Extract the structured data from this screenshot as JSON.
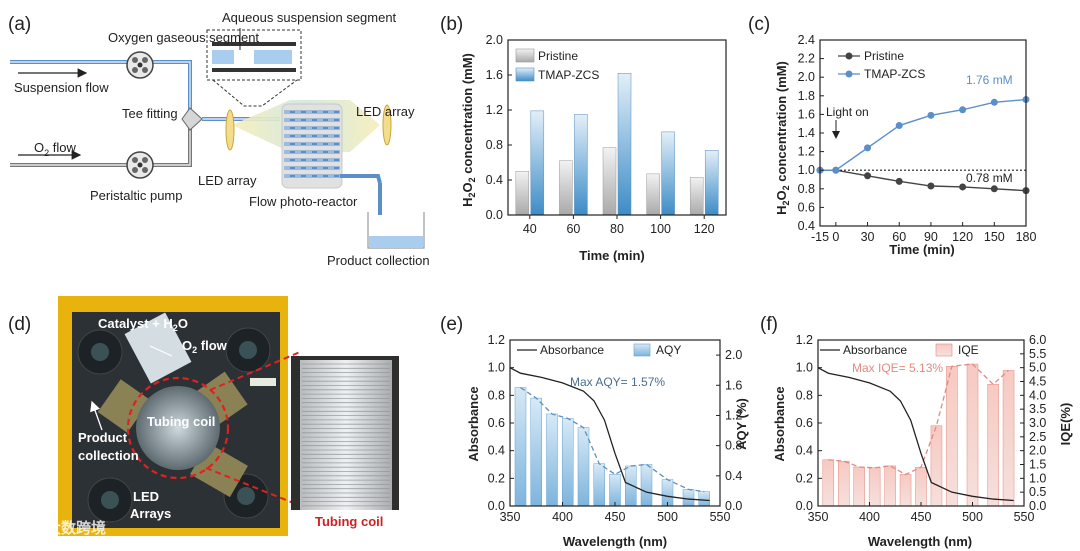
{
  "panels": {
    "a": {
      "label": "(a)",
      "aqueous_segment": "Aqueous suspension segment",
      "oxygen_segment": "Oxygen gaseous segment",
      "suspension_flow": "Suspension flow",
      "tee_fitting": "Tee fitting",
      "o2_flow_base": "O",
      "o2_flow_sub": "2",
      "o2_flow_rest": " flow",
      "peristaltic_pump": "Peristaltic pump",
      "led_array_left": "LED array",
      "led_array_right": "LED array",
      "flow_reactor": "Flow photo-reactor",
      "product_collection": "Product collection"
    },
    "d": {
      "label": "(d)",
      "catalyst": "Catalyst + H",
      "catalyst_sub": "2",
      "catalyst_end": "O",
      "o2_flow": "O",
      "o2_sub": "2",
      "o2_rest": " flow",
      "product": "Product",
      "collection": "collection",
      "tubing_coil": "Tubing coil",
      "led": "LED",
      "arrays": "Arrays",
      "tubing_coil_caption": "Tubing coil",
      "watermark": "大数跨境"
    }
  },
  "colors": {
    "pristine": "#b8b8b8",
    "tmap": "#5aa0d2",
    "tmap_line": "#5b8fc9",
    "aqy_bar": "#7fb7de",
    "iqe_bar": "#ef9f96",
    "red": "#cc2222"
  },
  "chart_data": [
    {
      "id": "b",
      "panel_label": "(b)",
      "type": "bar",
      "categories": [
        "40",
        "60",
        "80",
        "100",
        "120"
      ],
      "series": [
        {
          "name": "Pristine",
          "values": [
            0.5,
            0.62,
            0.77,
            0.47,
            0.43
          ]
        },
        {
          "name": "TMAP-ZCS",
          "values": [
            1.19,
            1.15,
            1.62,
            0.95,
            0.74
          ]
        }
      ],
      "xlabel": "Time (min)",
      "ylabel_parts": [
        "H",
        "2",
        "O",
        "2",
        " concentration (mM)"
      ],
      "ylim": [
        0,
        2.0
      ],
      "yticks": [
        "0.0",
        "0.4",
        "0.8",
        "1.2",
        "1.6",
        "2.0"
      ]
    },
    {
      "id": "c",
      "panel_label": "(c)",
      "type": "line",
      "x": [
        -15,
        0,
        30,
        60,
        90,
        120,
        150,
        180
      ],
      "series": [
        {
          "name": "Pristine",
          "values": [
            1.0,
            1.0,
            0.94,
            0.88,
            0.83,
            0.82,
            0.8,
            0.78
          ]
        },
        {
          "name": "TMAP-ZCS",
          "values": [
            1.0,
            1.0,
            1.24,
            1.48,
            1.59,
            1.65,
            1.73,
            1.76
          ]
        }
      ],
      "reference_line": 1.0,
      "annotations": {
        "light_on": "Light on",
        "tmap_end": "1.76 mM",
        "pristine_end": "0.78 mM"
      },
      "xlabel": "Time (min)",
      "ylabel_parts": [
        "H",
        "2",
        "O",
        "2",
        " concentration (mM)"
      ],
      "xticks": [
        "-15",
        "0",
        "30",
        "60",
        "90",
        "120",
        "150",
        "180"
      ],
      "yticks": [
        "0.4",
        "0.6",
        "0.8",
        "1.0",
        "1.2",
        "1.4",
        "1.6",
        "1.8",
        "2.0",
        "2.2",
        "2.4"
      ],
      "xlim": [
        -15,
        180
      ],
      "ylim": [
        0.4,
        2.4
      ]
    },
    {
      "id": "e",
      "panel_label": "(e)",
      "type": "bar",
      "absorbance": {
        "name": "Absorbance",
        "x": [
          350,
          360,
          380,
          400,
          420,
          430,
          440,
          450,
          460,
          480,
          500,
          520,
          540
        ],
        "y": [
          1.0,
          0.96,
          0.93,
          0.89,
          0.83,
          0.76,
          0.62,
          0.38,
          0.17,
          0.1,
          0.07,
          0.05,
          0.04
        ]
      },
      "bars": {
        "name": "AQY",
        "x": [
          360,
          375,
          390,
          405,
          420,
          435,
          450,
          465,
          480,
          500,
          520,
          535
        ],
        "values": [
          1.57,
          1.43,
          1.22,
          1.16,
          1.04,
          0.56,
          0.42,
          0.53,
          0.55,
          0.35,
          0.22,
          0.19
        ]
      },
      "max_label": "Max AQY= 1.57%",
      "xlabel": "Wavelength (nm)",
      "ylabel_left": "Absorbance",
      "ylabel_right": "AQY (%)",
      "xticks": [
        "350",
        "400",
        "450",
        "500",
        "550"
      ],
      "yticks_left": [
        "0.0",
        "0.2",
        "0.4",
        "0.6",
        "0.8",
        "1.0",
        "1.2"
      ],
      "yticks_right": [
        "0.0",
        "0.4",
        "0.8",
        "1.2",
        "1.6",
        "2.0"
      ],
      "xlim": [
        350,
        550
      ],
      "ylim_left": [
        0,
        1.2
      ],
      "ylim_right": [
        0,
        2.2
      ]
    },
    {
      "id": "f",
      "panel_label": "(f)",
      "type": "bar",
      "absorbance": {
        "name": "Absorbance",
        "x": [
          350,
          360,
          380,
          400,
          420,
          430,
          440,
          450,
          460,
          480,
          500,
          520,
          540
        ],
        "y": [
          1.0,
          0.96,
          0.93,
          0.89,
          0.83,
          0.76,
          0.62,
          0.38,
          0.17,
          0.1,
          0.07,
          0.05,
          0.04
        ]
      },
      "bars": {
        "name": "IQE",
        "x": [
          360,
          375,
          390,
          405,
          420,
          435,
          450,
          465,
          480,
          500,
          520,
          535
        ],
        "values": [
          1.67,
          1.62,
          1.41,
          1.38,
          1.45,
          1.14,
          1.4,
          2.9,
          5.05,
          5.13,
          4.4,
          4.9
        ]
      },
      "max_label": "Max IQE= 5.13%",
      "xlabel": "Wavelength (nm)",
      "ylabel_left": "Absorbance",
      "ylabel_right": "IQE(%)",
      "xticks": [
        "350",
        "400",
        "450",
        "500",
        "550"
      ],
      "yticks_left": [
        "0.0",
        "0.2",
        "0.4",
        "0.6",
        "0.8",
        "1.0",
        "1.2"
      ],
      "yticks_right": [
        "0.0",
        "0.5",
        "1.0",
        "1.5",
        "2.0",
        "2.5",
        "3.0",
        "3.5",
        "4.0",
        "4.5",
        "5.0",
        "5.5",
        "6.0"
      ],
      "xlim": [
        350,
        550
      ],
      "ylim_left": [
        0,
        1.2
      ],
      "ylim_right": [
        0,
        6.0
      ]
    }
  ]
}
